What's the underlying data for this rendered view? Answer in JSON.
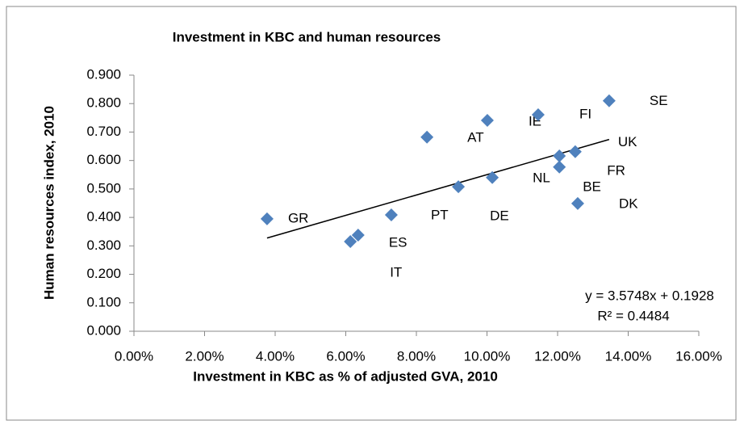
{
  "chart_data": {
    "type": "scatter",
    "title": "Investment in KBC and human resources",
    "x_label": "Investment in KBC as % of adjusted GVA,  2010",
    "y_label": "Human resources index, 2010",
    "point_labels": [
      "GR",
      "IT",
      "ES",
      "PT",
      "AT",
      "DE",
      "NL",
      "IE",
      "FI",
      "FR",
      "BE",
      "UK",
      "DK",
      "SE"
    ],
    "x": [
      0.0377,
      0.0613,
      0.0635,
      0.0729,
      0.083,
      0.0919,
      0.1015,
      0.1001,
      0.1145,
      0.1205,
      0.1205,
      0.125,
      0.1257,
      0.1346
    ],
    "values": [
      0.395,
      0.315,
      0.338,
      0.409,
      0.682,
      0.508,
      0.54,
      0.741,
      0.761,
      0.616,
      0.577,
      0.631,
      0.449,
      0.81
    ],
    "color": "#4f81bd",
    "xlim": [
      0,
      0.16
    ],
    "xticks": [
      {
        "value": 0,
        "label": "0.00%"
      },
      {
        "value": 0.02,
        "label": "2.00%"
      },
      {
        "value": 0.04,
        "label": "4.00%"
      },
      {
        "value": 0.06,
        "label": "6.00%"
      },
      {
        "value": 0.08,
        "label": "8.00%"
      },
      {
        "value": 0.1,
        "label": "10.00%"
      },
      {
        "value": 0.12,
        "label": "12.00%"
      },
      {
        "value": 0.14,
        "label": "14.00%"
      },
      {
        "value": 0.16,
        "label": "16.00%"
      }
    ],
    "ylim": [
      0,
      0.9
    ],
    "yticks": [
      {
        "value": 0,
        "label": "0.000"
      },
      {
        "value": 0.1,
        "label": "0.100"
      },
      {
        "value": 0.2,
        "label": "0.200"
      },
      {
        "value": 0.3,
        "label": "0.300"
      },
      {
        "value": 0.4,
        "label": "0.400"
      },
      {
        "value": 0.5,
        "label": "0.500"
      },
      {
        "value": 0.6,
        "label": "0.600"
      },
      {
        "value": 0.7,
        "label": "0.700"
      },
      {
        "value": 0.8,
        "label": "0.800"
      },
      {
        "value": 0.9,
        "label": "0.900"
      }
    ],
    "trendline": {
      "slope": 3.5748,
      "intercept": 0.1928,
      "equation": "y = 3.5748x + 0.1928",
      "r_squared": "R² = 0.4484"
    }
  }
}
